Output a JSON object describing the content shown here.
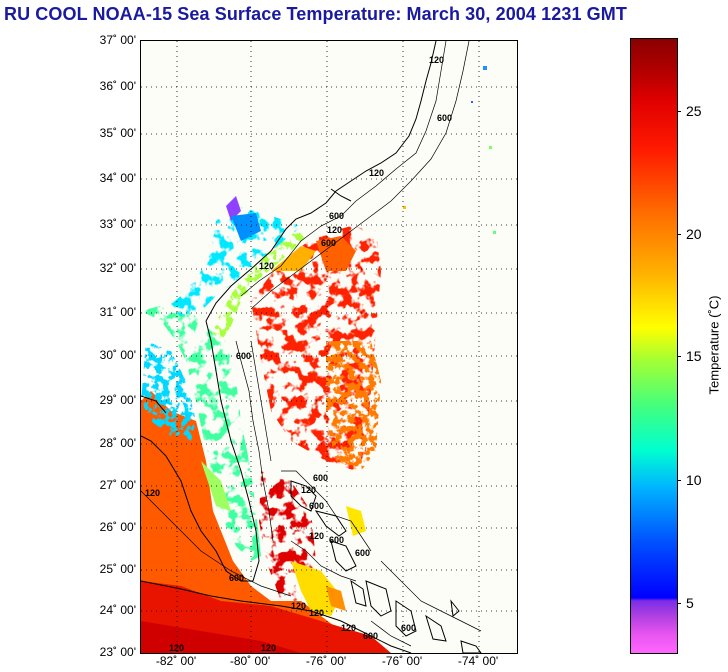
{
  "title": "RU COOL  NOAA-15  Sea Surface Temperature:  March 30, 2004 1231 GMT",
  "map": {
    "lat_labels": [
      "37˚ 00'",
      "36˚ 00'",
      "35˚ 00'",
      "34˚ 00'",
      "33˚ 00'",
      "32˚ 00'",
      "31˚ 00'",
      "30˚ 00'",
      "29˚ 00'",
      "28˚ 00'",
      "27˚ 00'",
      "26˚ 00'",
      "25˚ 00'",
      "24˚ 00'",
      "23˚ 00'"
    ],
    "lon_labels": [
      "-82˚ 00'",
      "-80˚ 00'",
      "-76˚ 00'",
      "-76˚ 00'",
      "-74˚ 00'"
    ],
    "bathymetry_labels": [
      "120",
      "600",
      "120",
      "600",
      "120",
      "600",
      "120",
      "600",
      "120",
      "600",
      "120",
      "600",
      "120",
      "120",
      "600",
      "120",
      "600",
      "120",
      "600",
      "120",
      "600",
      "120",
      "600"
    ]
  },
  "colorbar": {
    "label": "Temperature (˚C)",
    "ticks": [
      "25",
      "20",
      "15",
      "10",
      "5"
    ],
    "range": [
      3,
      28
    ]
  },
  "colors": {
    "title": "#1a1aa0",
    "land": "#fdfdf8",
    "cloud": "#ffffff"
  }
}
